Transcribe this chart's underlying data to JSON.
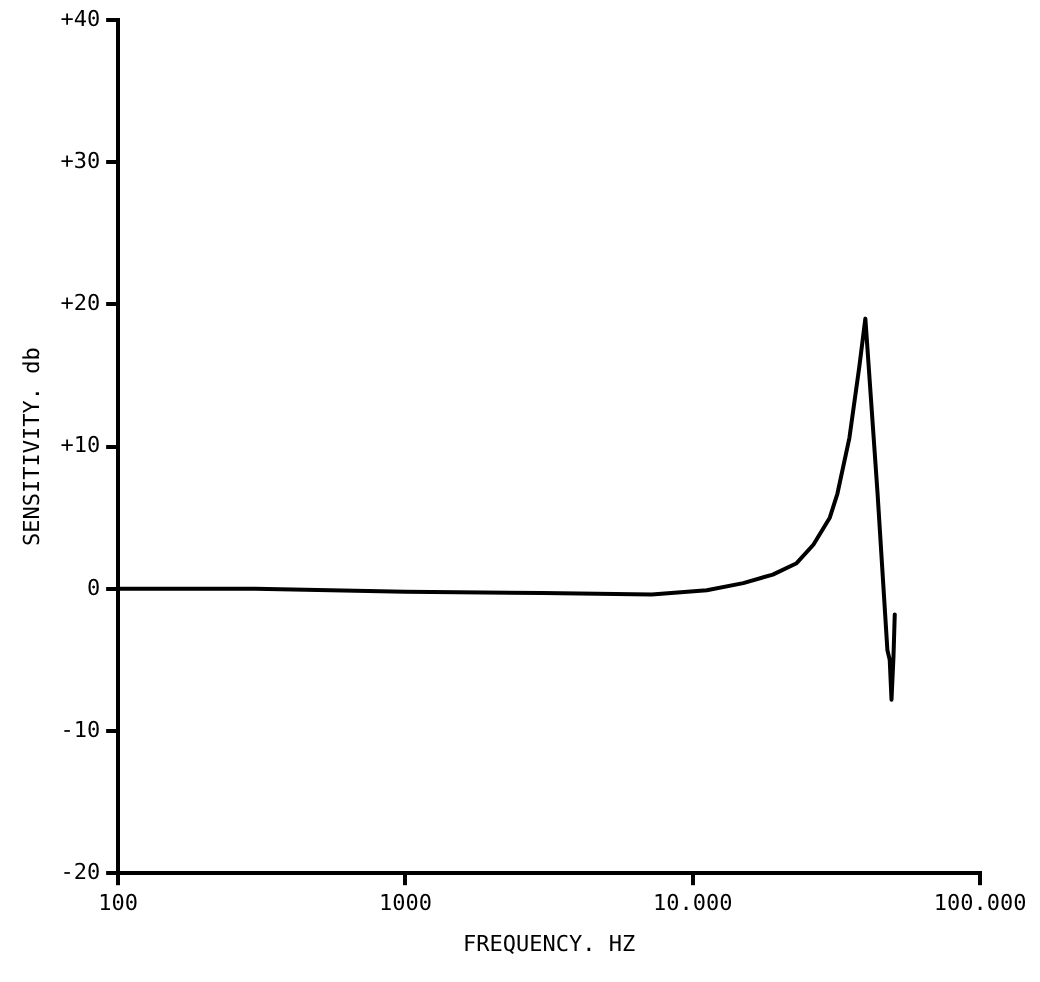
{
  "chart_data": {
    "type": "line",
    "xlabel": "FREQUENCY. HZ",
    "ylabel": "SENSITIVITY. db",
    "log": "x",
    "xlim": [
      100,
      100000
    ],
    "xticks": [
      100,
      1000,
      {
        "value": 10000,
        "label": "10.000"
      },
      {
        "value": 100000,
        "label": "100.000"
      }
    ],
    "ylim": [
      -20,
      40
    ],
    "yticks": [
      {
        "value": -20,
        "label": "-20"
      },
      {
        "value": -10,
        "label": "-10"
      },
      0,
      {
        "value": 10,
        "label": "+10"
      },
      {
        "value": 20,
        "label": "+20"
      },
      {
        "value": 30,
        "label": "+30"
      },
      {
        "value": 40,
        "label": "+40"
      }
    ],
    "grid": false,
    "legend": false,
    "marker": "none",
    "line_style": "solid",
    "series": [
      {
        "color": "#000000",
        "x": [
          100,
          300,
          1000,
          3000,
          7200,
          11200,
          15000,
          19000,
          23000,
          26300,
          30000,
          31900,
          35100,
          38000,
          39900,
          44000,
          47600,
          48500,
          49200,
          50000,
          50500
        ],
        "values": [
          0,
          0,
          -0.2,
          -0.3,
          -0.4,
          -0.1,
          0.4,
          1,
          1.8,
          3.1,
          5,
          6.7,
          10.6,
          15.6,
          19,
          6.7,
          -4.3,
          -5,
          -7.8,
          -4.7,
          -1.8
        ]
      }
    ]
  }
}
